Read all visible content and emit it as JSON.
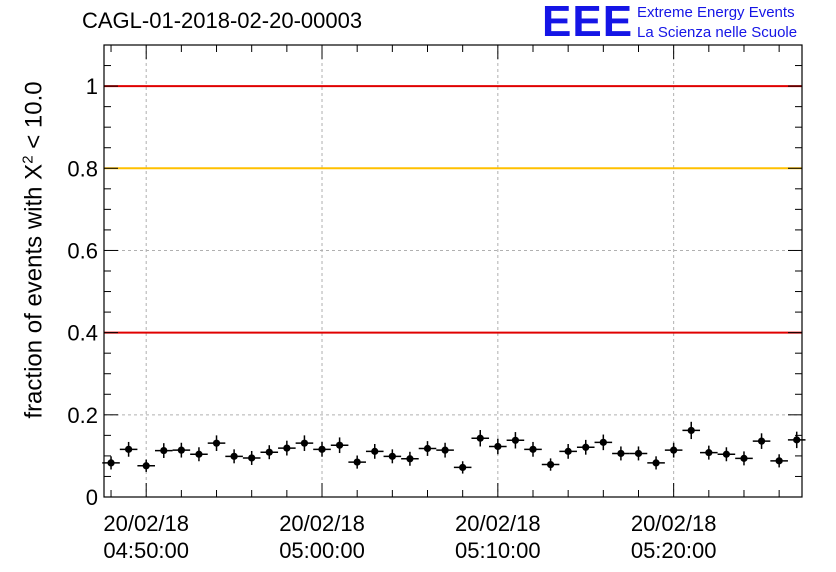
{
  "title": "CAGL-01-2018-02-20-00003",
  "logo": {
    "letters": "EEE",
    "line1": "Extreme Energy Events",
    "line2": "La Scienza nelle Scuole",
    "color": "#1515e6"
  },
  "chart_data": {
    "type": "scatter",
    "title": "CAGL-01-2018-02-20-00003",
    "ylabel": {
      "prefix": "fraction of events with ",
      "symbol": "X",
      "superscript": "2",
      "suffix": " < 10.0"
    },
    "xlabel": "",
    "ylim": [
      0,
      1.1
    ],
    "xlim_minutes": [
      -2.4,
      37.3
    ],
    "x_reference_time": "04:50:00",
    "y_ticks": [
      {
        "value": 0,
        "label": "0"
      },
      {
        "value": 0.2,
        "label": "0.2"
      },
      {
        "value": 0.4,
        "label": "0.4"
      },
      {
        "value": 0.6,
        "label": "0.6"
      },
      {
        "value": 0.8,
        "label": "0.8"
      },
      {
        "value": 1,
        "label": "1"
      }
    ],
    "x_ticks": [
      {
        "minute": 0,
        "date": "20/02/18",
        "time": "04:50:00"
      },
      {
        "minute": 10,
        "date": "20/02/18",
        "time": "05:00:00"
      },
      {
        "minute": 20,
        "date": "20/02/18",
        "time": "05:10:00"
      },
      {
        "minute": 30,
        "date": "20/02/18",
        "time": "05:20:00"
      }
    ],
    "grid": true,
    "reference_lines": [
      {
        "y": 1.0,
        "color": "#e00000"
      },
      {
        "y": 0.8,
        "color": "#ffc000"
      },
      {
        "y": 0.4,
        "color": "#e00000"
      }
    ],
    "series": [
      {
        "color": "#000000",
        "x_halfwidth_minutes": 0.5,
        "points": [
          {
            "x": -2.0,
            "y": 0.083,
            "err": 0.016
          },
          {
            "x": -1.0,
            "y": 0.116,
            "err": 0.018
          },
          {
            "x": 0.0,
            "y": 0.076,
            "err": 0.015
          },
          {
            "x": 1.0,
            "y": 0.113,
            "err": 0.018
          },
          {
            "x": 2.0,
            "y": 0.114,
            "err": 0.018
          },
          {
            "x": 3.0,
            "y": 0.104,
            "err": 0.017
          },
          {
            "x": 4.0,
            "y": 0.131,
            "err": 0.019
          },
          {
            "x": 5.0,
            "y": 0.099,
            "err": 0.017
          },
          {
            "x": 6.0,
            "y": 0.095,
            "err": 0.017
          },
          {
            "x": 7.0,
            "y": 0.109,
            "err": 0.017
          },
          {
            "x": 8.0,
            "y": 0.119,
            "err": 0.018
          },
          {
            "x": 9.0,
            "y": 0.131,
            "err": 0.019
          },
          {
            "x": 10.0,
            "y": 0.116,
            "err": 0.018
          },
          {
            "x": 11.0,
            "y": 0.126,
            "err": 0.019
          },
          {
            "x": 12.0,
            "y": 0.085,
            "err": 0.016
          },
          {
            "x": 13.0,
            "y": 0.111,
            "err": 0.018
          },
          {
            "x": 14.0,
            "y": 0.099,
            "err": 0.017
          },
          {
            "x": 15.0,
            "y": 0.093,
            "err": 0.017
          },
          {
            "x": 16.0,
            "y": 0.118,
            "err": 0.018
          },
          {
            "x": 17.0,
            "y": 0.114,
            "err": 0.018
          },
          {
            "x": 18.0,
            "y": 0.072,
            "err": 0.015
          },
          {
            "x": 19.0,
            "y": 0.143,
            "err": 0.02
          },
          {
            "x": 20.0,
            "y": 0.123,
            "err": 0.019
          },
          {
            "x": 21.0,
            "y": 0.138,
            "err": 0.02
          },
          {
            "x": 22.0,
            "y": 0.116,
            "err": 0.018
          },
          {
            "x": 23.0,
            "y": 0.079,
            "err": 0.015
          },
          {
            "x": 24.0,
            "y": 0.111,
            "err": 0.018
          },
          {
            "x": 25.0,
            "y": 0.121,
            "err": 0.018
          },
          {
            "x": 26.0,
            "y": 0.133,
            "err": 0.019
          },
          {
            "x": 27.0,
            "y": 0.106,
            "err": 0.017
          },
          {
            "x": 28.0,
            "y": 0.106,
            "err": 0.017
          },
          {
            "x": 29.0,
            "y": 0.083,
            "err": 0.016
          },
          {
            "x": 30.0,
            "y": 0.114,
            "err": 0.018
          },
          {
            "x": 31.0,
            "y": 0.162,
            "err": 0.021
          },
          {
            "x": 32.0,
            "y": 0.108,
            "err": 0.017
          },
          {
            "x": 33.0,
            "y": 0.104,
            "err": 0.017
          },
          {
            "x": 34.0,
            "y": 0.094,
            "err": 0.017
          },
          {
            "x": 35.0,
            "y": 0.136,
            "err": 0.019
          },
          {
            "x": 36.0,
            "y": 0.088,
            "err": 0.016
          },
          {
            "x": 37.0,
            "y": 0.139,
            "err": 0.02
          }
        ]
      }
    ]
  }
}
